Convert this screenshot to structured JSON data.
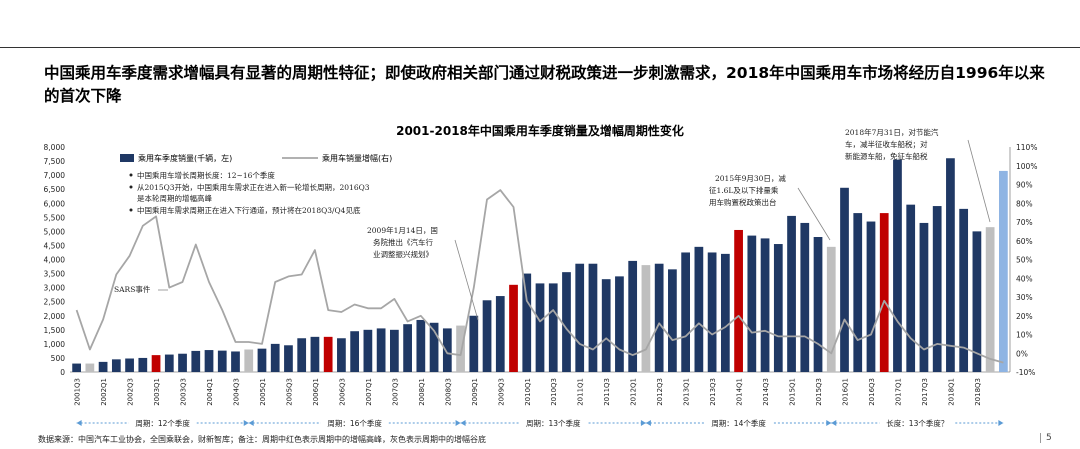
{
  "headline": "中国乘用车季度需求增幅具有显著的周期性特征；即使政府相关部门通过财税政策进一步刺激需求，2018年中国乘用车市场将经历自1996年以来的首次下降",
  "footnote": "数据来源：中国汽车工业协会，全国乘联会，财新智库；备注：周期中红色表示周期中的增幅高峰，灰色表示周期中的增幅谷底",
  "page_number": "5",
  "chart_data": {
    "type": "bar",
    "title": "2001-2018年中国乘用车季度销量及增幅周期性变化",
    "legend": {
      "bar_label": "乘用车季度销量(千辆，左)",
      "line_label": "乘用车销量增幅(右)"
    },
    "y_left": {
      "min": 0,
      "max": 8000,
      "step": 500,
      "ticks": [
        "0",
        "500",
        "1,000",
        "1,500",
        "2,000",
        "2,500",
        "3,000",
        "3,500",
        "4,000",
        "4,500",
        "5,000",
        "5,500",
        "6,000",
        "6,500",
        "7,000",
        "7,500",
        "8,000"
      ]
    },
    "y_right": {
      "min": -10,
      "max": 110,
      "step": 10,
      "ticks": [
        "-10%",
        "0%",
        "10%",
        "20%",
        "30%",
        "40%",
        "50%",
        "60%",
        "70%",
        "80%",
        "90%",
        "100%",
        "110%"
      ]
    },
    "x_tick_labels": [
      "2001Q3",
      "2002Q1",
      "2002Q3",
      "2003Q1",
      "2003Q3",
      "2004Q1",
      "2004Q3",
      "2005Q1",
      "2005Q3",
      "2006Q1",
      "2006Q3",
      "2007Q1",
      "2007Q3",
      "2008Q1",
      "2008Q3",
      "2009Q1",
      "2009Q3",
      "2010Q1",
      "2010Q3",
      "2011Q1",
      "2011Q3",
      "2012Q1",
      "2012Q3",
      "2013Q1",
      "2013Q3",
      "2014Q1",
      "2014Q3",
      "2015Q1",
      "2015Q3",
      "2016Q1",
      "2016Q3",
      "2017Q1",
      "2017Q3",
      "2018Q1",
      "2018Q3"
    ],
    "colors": {
      "normal": "#1f3864",
      "peak": "#c00000",
      "trough": "#bfbfbf",
      "forecast": "#8eb4e3",
      "line": "#a6a6a6"
    },
    "bars": {
      "values": [
        300,
        300,
        360,
        450,
        480,
        500,
        600,
        620,
        650,
        750,
        780,
        760,
        730,
        800,
        830,
        1000,
        950,
        1200,
        1250,
        1250,
        1200,
        1450,
        1500,
        1550,
        1500,
        1700,
        1850,
        1750,
        1550,
        1650,
        2000,
        2550,
        2700,
        3100,
        3500,
        3150,
        3150,
        3550,
        3850,
        3850,
        3300,
        3400,
        3950,
        3800,
        3850,
        3650,
        4250,
        4450,
        4250,
        4200,
        5050,
        4850,
        4750,
        4550,
        5550,
        5300,
        4800,
        4450,
        6550,
        5650,
        5350,
        5650,
        7550,
        5950,
        5300,
        5900,
        7600,
        5800,
        5000,
        5150,
        7150
      ],
      "types": [
        "normal",
        "trough",
        "normal",
        "normal",
        "normal",
        "normal",
        "peak",
        "normal",
        "normal",
        "normal",
        "normal",
        "normal",
        "normal",
        "trough",
        "normal",
        "normal",
        "normal",
        "normal",
        "normal",
        "peak",
        "normal",
        "normal",
        "normal",
        "normal",
        "normal",
        "normal",
        "normal",
        "normal",
        "normal",
        "trough",
        "normal",
        "normal",
        "normal",
        "peak",
        "normal",
        "normal",
        "normal",
        "normal",
        "normal",
        "normal",
        "normal",
        "normal",
        "normal",
        "trough",
        "normal",
        "normal",
        "normal",
        "normal",
        "normal",
        "normal",
        "peak",
        "normal",
        "normal",
        "normal",
        "normal",
        "normal",
        "normal",
        "trough",
        "normal",
        "normal",
        "normal",
        "peak",
        "normal",
        "normal",
        "normal",
        "normal",
        "normal",
        "normal",
        "normal",
        "trough",
        "forecast"
      ]
    },
    "growth_pct": [
      23,
      2,
      18,
      42,
      52,
      68,
      73,
      35,
      38,
      58,
      38,
      23,
      6,
      6,
      5,
      38,
      41,
      42,
      55,
      23,
      22,
      26,
      24,
      24,
      29,
      17,
      20,
      12,
      0,
      -1,
      35,
      82,
      87,
      78,
      28,
      17,
      23,
      13,
      5,
      2,
      8,
      2,
      -1,
      2,
      16,
      7,
      9,
      16,
      10,
      14,
      20,
      11,
      12,
      9,
      9,
      9,
      5,
      0,
      18,
      7,
      10,
      28,
      17,
      8,
      2,
      5,
      4,
      3,
      0,
      -3,
      -5
    ],
    "annotations": [
      {
        "text": "中国乘用车增长周期长度：12~16个季度"
      },
      {
        "text": "从2015Q3开始，中国乘用车需求正在进入新一轮增长周期，2016Q3"
      },
      {
        "text": "是本轮周期的增幅高峰"
      },
      {
        "text": "中国乘用车需求周期正在进入下行通道，预计将在2018Q3/Q4见底"
      },
      {
        "text": "SARS事件"
      },
      {
        "text": "2009年1月14日，国"
      },
      {
        "text": "务院推出《汽车行"
      },
      {
        "text": "业调整振兴规划》"
      },
      {
        "text": "2015年9月30日，减"
      },
      {
        "text": "征1.6L及以下排量乘"
      },
      {
        "text": "用车购置税政策出台"
      },
      {
        "text": "2018年7月31日，对节能汽"
      },
      {
        "text": "车，减半征收车船税；对"
      },
      {
        "text": "新能源车船，免征车船税"
      }
    ],
    "periods": [
      {
        "label": "周期：12个季度",
        "start": 0,
        "end": 13
      },
      {
        "label": "周期：16个季度",
        "start": 13,
        "end": 29
      },
      {
        "label": "周期：13个季度",
        "start": 29,
        "end": 43
      },
      {
        "label": "周期：14个季度",
        "start": 43,
        "end": 57
      },
      {
        "label": "长度：13个季度？",
        "start": 57,
        "end": 70
      }
    ]
  }
}
